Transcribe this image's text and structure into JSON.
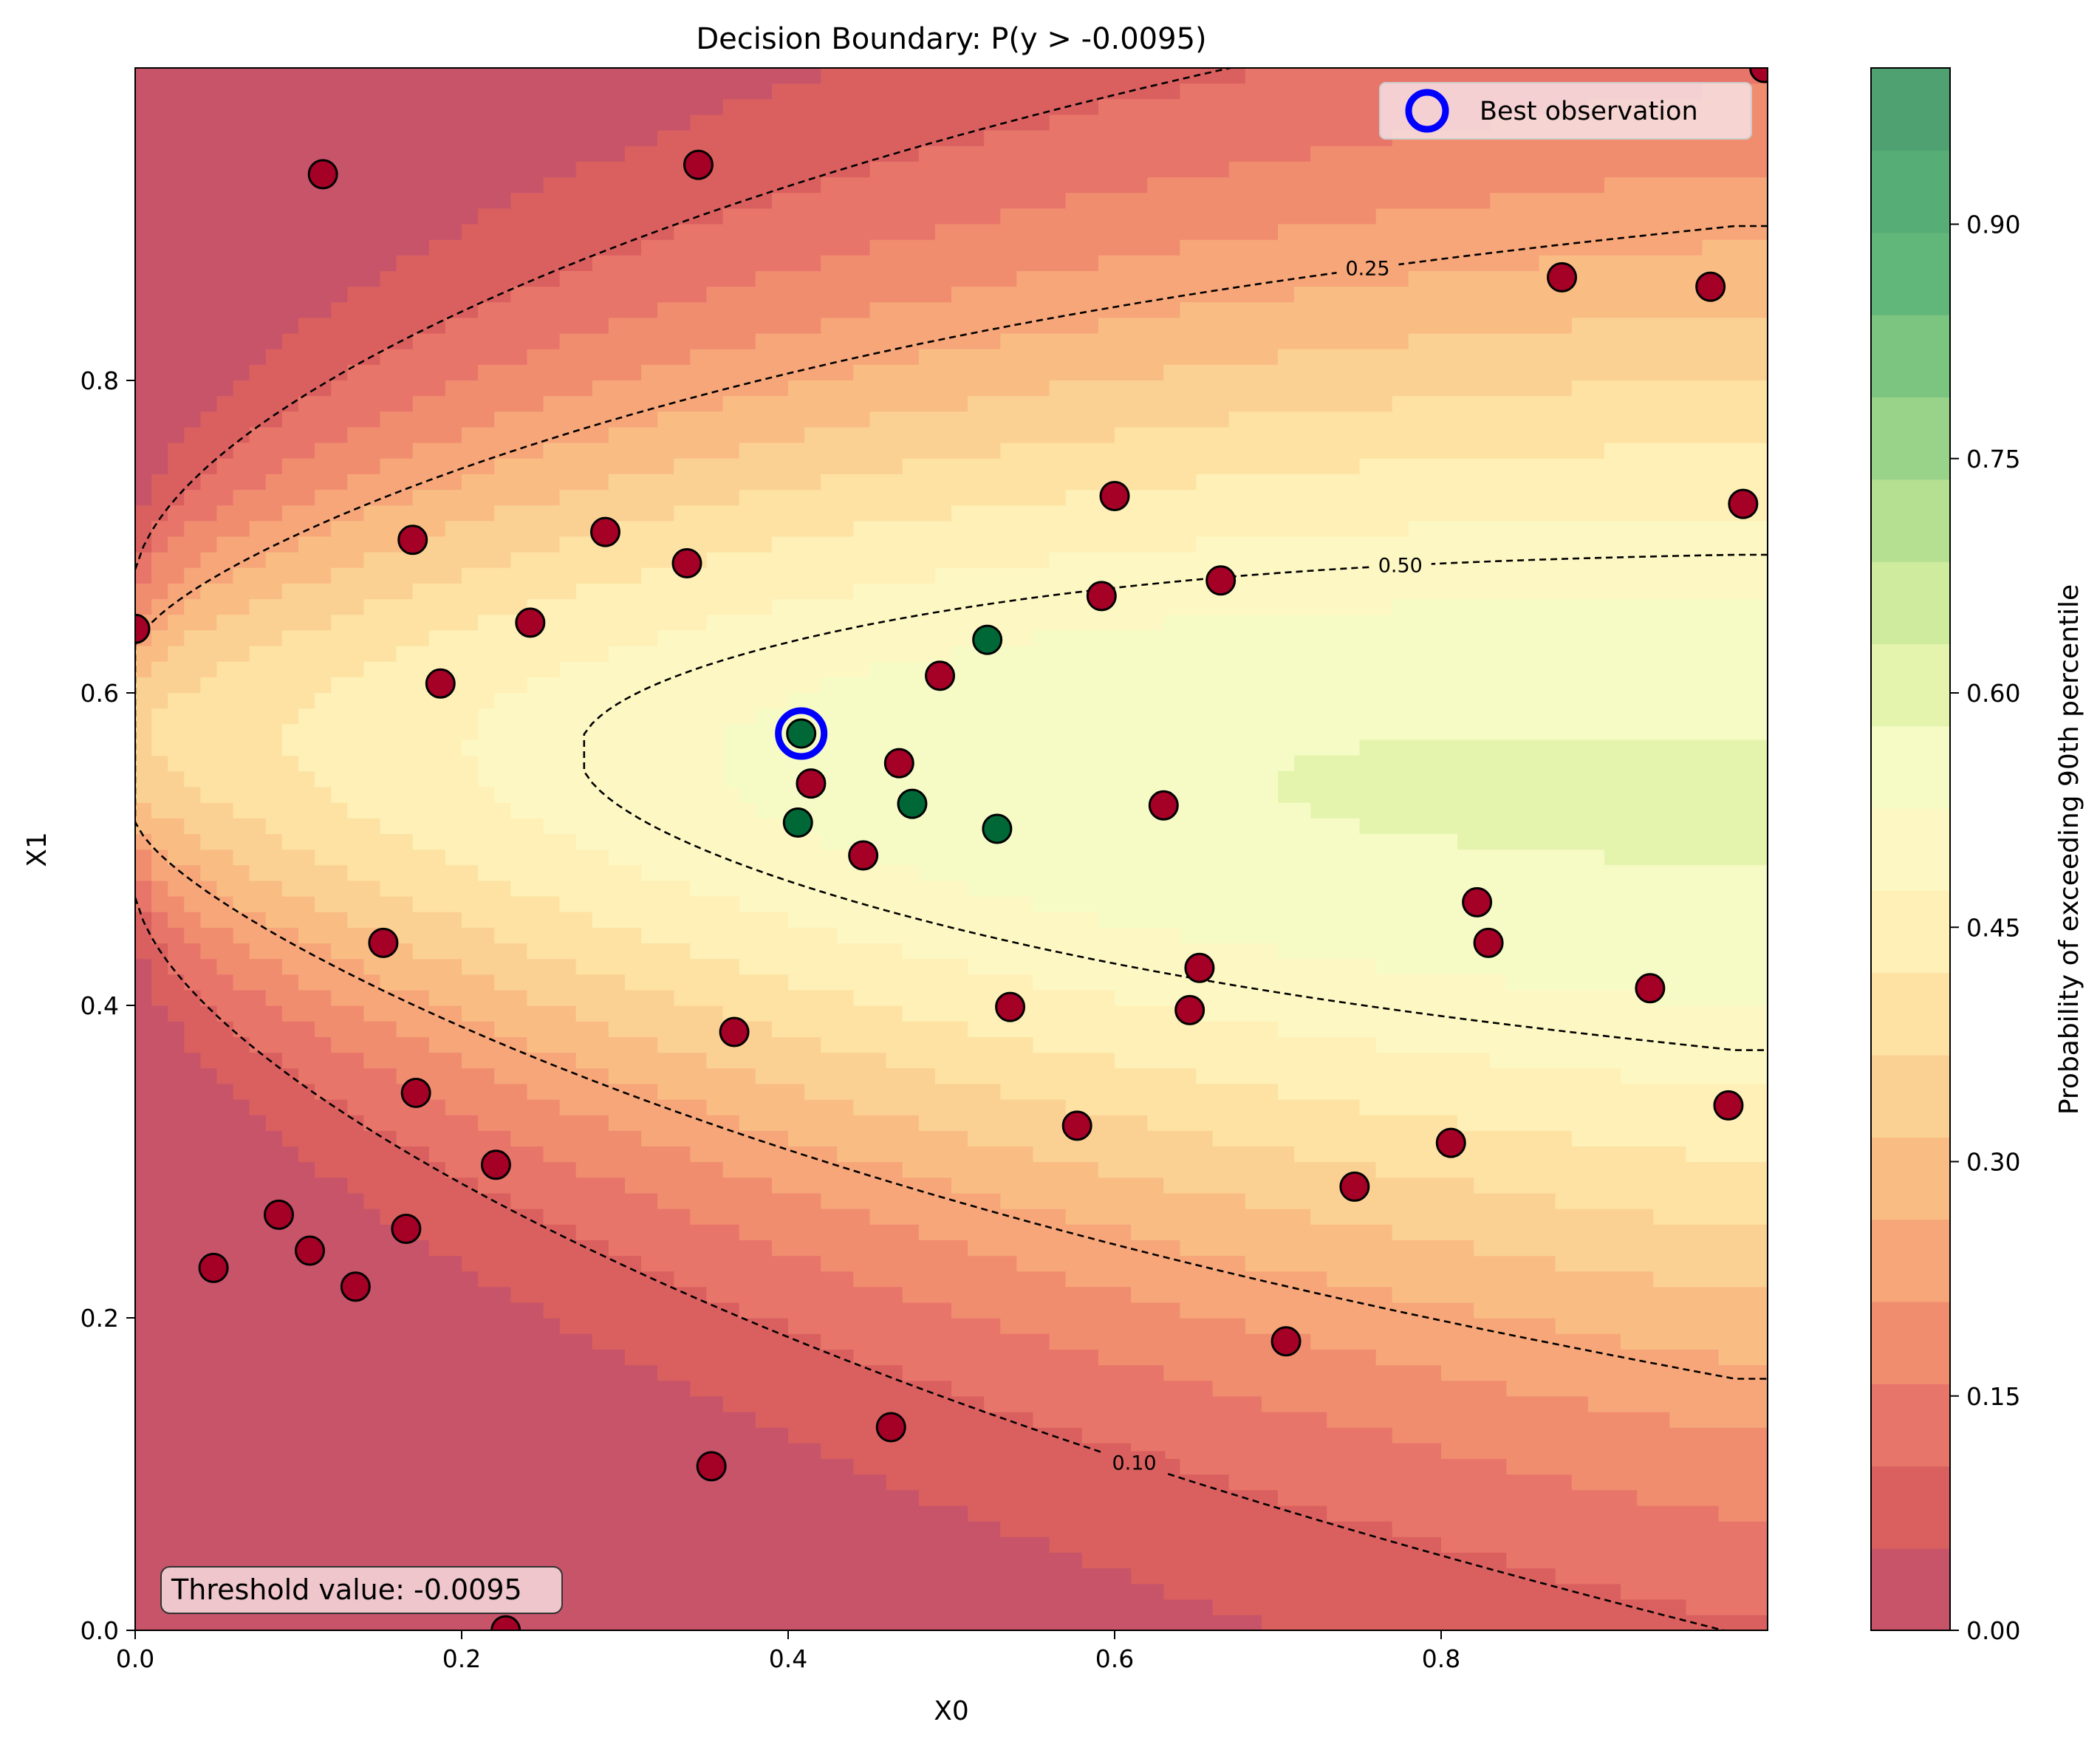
{
  "chart_data": {
    "type": "contourf",
    "title": "Decision Boundary: P(y > -0.0095)",
    "xlabel": "X0",
    "ylabel": "X1",
    "xlim": [
      0.0,
      1.0
    ],
    "ylim": [
      0.0,
      1.0
    ],
    "x_ticks": [
      "0.0",
      "0.2",
      "0.4",
      "0.6",
      "0.8"
    ],
    "x_tick_values": [
      0.0,
      0.2,
      0.4,
      0.6,
      0.8
    ],
    "y_ticks": [
      "0.0",
      "0.2",
      "0.4",
      "0.6",
      "0.8"
    ],
    "y_tick_values": [
      0.0,
      0.2,
      0.4,
      0.6,
      0.8
    ],
    "grid": false,
    "colorbar": {
      "label": "Probability of exceeding 90th percentile",
      "range": [
        0.0,
        1.0
      ],
      "ticks": [
        "0.00",
        "0.15",
        "0.30",
        "0.45",
        "0.60",
        "0.75",
        "0.90"
      ],
      "tick_values": [
        0.0,
        0.15,
        0.3,
        0.45,
        0.6,
        0.75,
        0.9
      ],
      "colors": [
        "#c8546a",
        "#d9605f",
        "#e8756a",
        "#f08d6f",
        "#f6a679",
        "#f9bd84",
        "#fbd193",
        "#fde2a3",
        "#fef0b6",
        "#fdf7c3",
        "#f6fbc6",
        "#e4f4ad",
        "#cfeb9d",
        "#b5df91",
        "#99d38a",
        "#7cc581",
        "#61b77a",
        "#56ad75",
        "#4fa171"
      ]
    },
    "contour_line_labels": [
      "0.10",
      "0.25",
      "0.50",
      "0.10"
    ],
    "legend": {
      "entries": [
        "Best observation"
      ],
      "position": "upper right"
    },
    "annotation": "Threshold value: -0.0095",
    "best_observation": {
      "x": 0.408,
      "y": 0.574
    },
    "points_below_threshold": [
      [
        0.115,
        0.932
      ],
      [
        0.345,
        0.938
      ],
      [
        0.998,
        1.0
      ],
      [
        0.874,
        0.866
      ],
      [
        0.965,
        0.86
      ],
      [
        0.6,
        0.726
      ],
      [
        0.985,
        0.721
      ],
      [
        0.17,
        0.698
      ],
      [
        0.288,
        0.703
      ],
      [
        0.338,
        0.683
      ],
      [
        0.592,
        0.662
      ],
      [
        0.665,
        0.672
      ],
      [
        0.0,
        0.641
      ],
      [
        0.242,
        0.645
      ],
      [
        0.187,
        0.606
      ],
      [
        0.493,
        0.611
      ],
      [
        0.414,
        0.542
      ],
      [
        0.468,
        0.555
      ],
      [
        0.63,
        0.528
      ],
      [
        0.446,
        0.496
      ],
      [
        0.822,
        0.466
      ],
      [
        0.829,
        0.44
      ],
      [
        0.152,
        0.44
      ],
      [
        0.652,
        0.424
      ],
      [
        0.928,
        0.411
      ],
      [
        0.536,
        0.399
      ],
      [
        0.646,
        0.397
      ],
      [
        0.367,
        0.383
      ],
      [
        0.172,
        0.344
      ],
      [
        0.976,
        0.336
      ],
      [
        0.577,
        0.323
      ],
      [
        0.806,
        0.312
      ],
      [
        0.221,
        0.298
      ],
      [
        0.747,
        0.284
      ],
      [
        0.088,
        0.266
      ],
      [
        0.166,
        0.257
      ],
      [
        0.107,
        0.243
      ],
      [
        0.048,
        0.232
      ],
      [
        0.135,
        0.22
      ],
      [
        0.705,
        0.185
      ],
      [
        0.463,
        0.13
      ],
      [
        0.353,
        0.105
      ],
      [
        0.227,
        0.0
      ]
    ],
    "points_above_threshold": [
      [
        0.522,
        0.634
      ],
      [
        0.408,
        0.574
      ],
      [
        0.406,
        0.517
      ],
      [
        0.476,
        0.529
      ],
      [
        0.528,
        0.513
      ]
    ]
  }
}
